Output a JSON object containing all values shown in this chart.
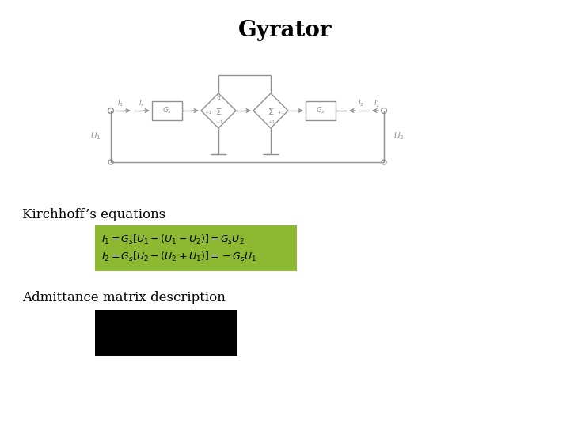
{
  "title": "Gyrator",
  "title_fontsize": 20,
  "title_fontweight": "bold",
  "bg_color": "#ffffff",
  "kirchhoff_label": "Kirchhoff’s equations",
  "admittance_label": "Admittance matrix description",
  "label_fontsize": 12,
  "eq_bg_color": "#8db832",
  "eq_text_color": "#000000",
  "matrix_box_color": "#000000",
  "lc": "#909090",
  "lw": 1.0
}
